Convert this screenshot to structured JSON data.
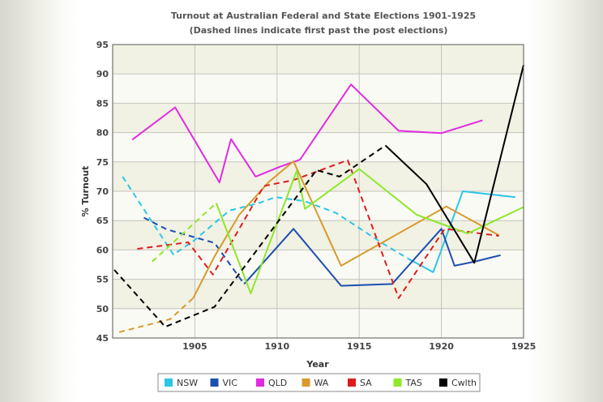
{
  "chart_data": {
    "type": "line",
    "title": "Turnout at Australian Federal and State Elections 1901-1925",
    "subtitle": "(Dashed lines indicate first past the post elections)",
    "xlabel": "Year",
    "ylabel": "% Turnout",
    "xlim": [
      1900,
      1925
    ],
    "ylim": [
      45,
      95
    ],
    "xticks": [
      1905,
      1910,
      1915,
      1920,
      1925
    ],
    "yticks": [
      45,
      50,
      55,
      60,
      65,
      70,
      75,
      80,
      85,
      90,
      95
    ],
    "grid": true,
    "legend_position": "bottom",
    "series": [
      {
        "name": "NSW",
        "color": "#2cc6e6",
        "segments": [
          {
            "dashed": true,
            "points": [
              [
                1900.6,
                72.5
              ],
              [
                1903.7,
                59.2
              ],
              [
                1904.9,
                61.5
              ],
              [
                1907.1,
                66.7
              ],
              [
                1908.9,
                68.0
              ],
              [
                1909.9,
                69.0
              ],
              [
                1911.7,
                68.3
              ],
              [
                1913.6,
                66.3
              ],
              [
                1916.5,
                61.0
              ],
              [
                1918.0,
                58.5
              ]
            ]
          },
          {
            "dashed": false,
            "points": [
              [
                1918.0,
                58.5
              ],
              [
                1919.5,
                56.2
              ],
              [
                1921.3,
                70.0
              ],
              [
                1924.5,
                69.0
              ]
            ]
          }
        ]
      },
      {
        "name": "VIC",
        "color": "#1d4fb0",
        "segments": [
          {
            "dashed": true,
            "points": [
              [
                1901.9,
                65.5
              ],
              [
                1903.3,
                63.5
              ],
              [
                1906.2,
                61.2
              ],
              [
                1908.0,
                54.2
              ]
            ]
          },
          {
            "dashed": false,
            "points": [
              [
                1908.0,
                54.2
              ],
              [
                1911.0,
                63.6
              ],
              [
                1913.9,
                53.9
              ],
              [
                1917.0,
                54.2
              ],
              [
                1920.0,
                63.6
              ],
              [
                1920.8,
                57.3
              ],
              [
                1922.0,
                58.0
              ],
              [
                1923.6,
                59.1
              ]
            ]
          }
        ]
      },
      {
        "name": "QLD",
        "color": "#e12ae1",
        "segments": [
          {
            "dashed": false,
            "points": [
              [
                1901.2,
                78.8
              ],
              [
                1903.8,
                84.3
              ],
              [
                1906.5,
                71.5
              ],
              [
                1907.2,
                78.9
              ],
              [
                1908.7,
                72.5
              ],
              [
                1910.2,
                74.2
              ],
              [
                1911.4,
                75.4
              ],
              [
                1914.5,
                88.2
              ],
              [
                1917.4,
                80.3
              ],
              [
                1920.0,
                79.9
              ],
              [
                1922.5,
                82.1
              ]
            ]
          }
        ]
      },
      {
        "name": "WA",
        "color": "#d89a2a",
        "segments": [
          {
            "dashed": true,
            "points": [
              [
                1900.4,
                46.0
              ],
              [
                1903.5,
                48.2
              ],
              [
                1904.9,
                51.8
              ]
            ]
          },
          {
            "dashed": false,
            "points": [
              [
                1904.9,
                51.8
              ],
              [
                1906.2,
                58.9
              ],
              [
                1907.7,
                66.0
              ],
              [
                1909.5,
                71.6
              ],
              [
                1911.0,
                75.1
              ],
              [
                1913.9,
                57.3
              ],
              [
                1920.3,
                67.4
              ],
              [
                1923.5,
                62.5
              ]
            ]
          }
        ]
      },
      {
        "name": "SA",
        "color": "#dd1d1d",
        "segments": [
          {
            "dashed": true,
            "points": [
              [
                1901.5,
                60.2
              ],
              [
                1904.6,
                61.3
              ],
              [
                1906.1,
                55.8
              ],
              [
                1909.2,
                70.9
              ],
              [
                1911.0,
                71.9
              ],
              [
                1914.3,
                75.3
              ],
              [
                1917.4,
                51.8
              ],
              [
                1920.2,
                63.6
              ],
              [
                1923.5,
                62.4
              ]
            ]
          }
        ]
      },
      {
        "name": "TAS",
        "color": "#8de82a",
        "segments": [
          {
            "dashed": true,
            "points": [
              [
                1902.4,
                58.0
              ],
              [
                1906.3,
                68.0
              ]
            ]
          },
          {
            "dashed": false,
            "points": [
              [
                1906.3,
                68.0
              ],
              [
                1908.4,
                52.6
              ],
              [
                1911.2,
                73.5
              ],
              [
                1911.7,
                67.0
              ],
              [
                1915.0,
                73.8
              ],
              [
                1918.5,
                66.0
              ],
              [
                1921.6,
                62.8
              ],
              [
                1925.0,
                67.3
              ]
            ]
          }
        ]
      },
      {
        "name": "Cwlth",
        "color": "#000000",
        "segments": [
          {
            "dashed": true,
            "points": [
              [
                1900.1,
                56.6
              ],
              [
                1903.2,
                46.9
              ],
              [
                1906.2,
                50.3
              ],
              [
                1912.4,
                73.6
              ],
              [
                1913.8,
                72.5
              ],
              [
                1916.6,
                77.8
              ]
            ]
          },
          {
            "dashed": false,
            "points": [
              [
                1916.6,
                77.8
              ],
              [
                1919.1,
                71.2
              ],
              [
                1922.0,
                57.8
              ],
              [
                1925.0,
                91.5
              ]
            ]
          }
        ]
      }
    ]
  }
}
